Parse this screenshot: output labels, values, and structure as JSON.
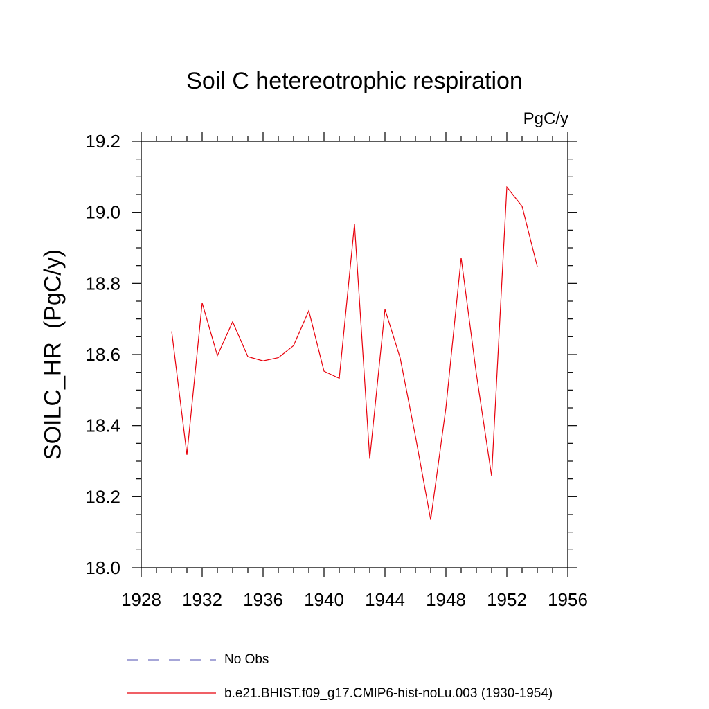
{
  "chart_data": {
    "type": "line",
    "title": "Soil C hetereotrophic respiration",
    "units_label": "PgC/y",
    "ylabel": "SOILC_HR  (PgC/y)",
    "xlabel": "",
    "xlim": [
      1928,
      1956
    ],
    "ylim": [
      18.0,
      19.2
    ],
    "xticks": [
      1928,
      1932,
      1936,
      1940,
      1944,
      1948,
      1952,
      1956
    ],
    "yticks": [
      "18.0",
      "18.2",
      "18.4",
      "18.6",
      "18.8",
      "19.0",
      "19.2"
    ],
    "grid": false,
    "legend": [
      {
        "label": "No Obs",
        "style": "dashed",
        "color": "#7070c0"
      },
      {
        "label": "b.e21.BHIST.f09_g17.CMIP6-hist-noLu.003 (1930-1954)",
        "style": "solid",
        "color": "#e8000b"
      }
    ],
    "series": [
      {
        "name": "b.e21.BHIST.f09_g17.CMIP6-hist-noLu.003 (1930-1954)",
        "color": "#e8000b",
        "x": [
          1930,
          1931,
          1932,
          1933,
          1934,
          1935,
          1936,
          1937,
          1938,
          1939,
          1940,
          1941,
          1942,
          1943,
          1944,
          1945,
          1946,
          1947,
          1948,
          1949,
          1950,
          1951,
          1952,
          1953,
          1954
        ],
        "values": [
          18.665,
          18.318,
          18.745,
          18.597,
          18.692,
          18.594,
          18.582,
          18.591,
          18.625,
          18.723,
          18.553,
          18.533,
          18.967,
          18.307,
          18.727,
          18.59,
          18.37,
          18.135,
          18.45,
          18.872,
          18.545,
          18.258,
          19.071,
          19.017,
          18.847
        ]
      }
    ]
  }
}
